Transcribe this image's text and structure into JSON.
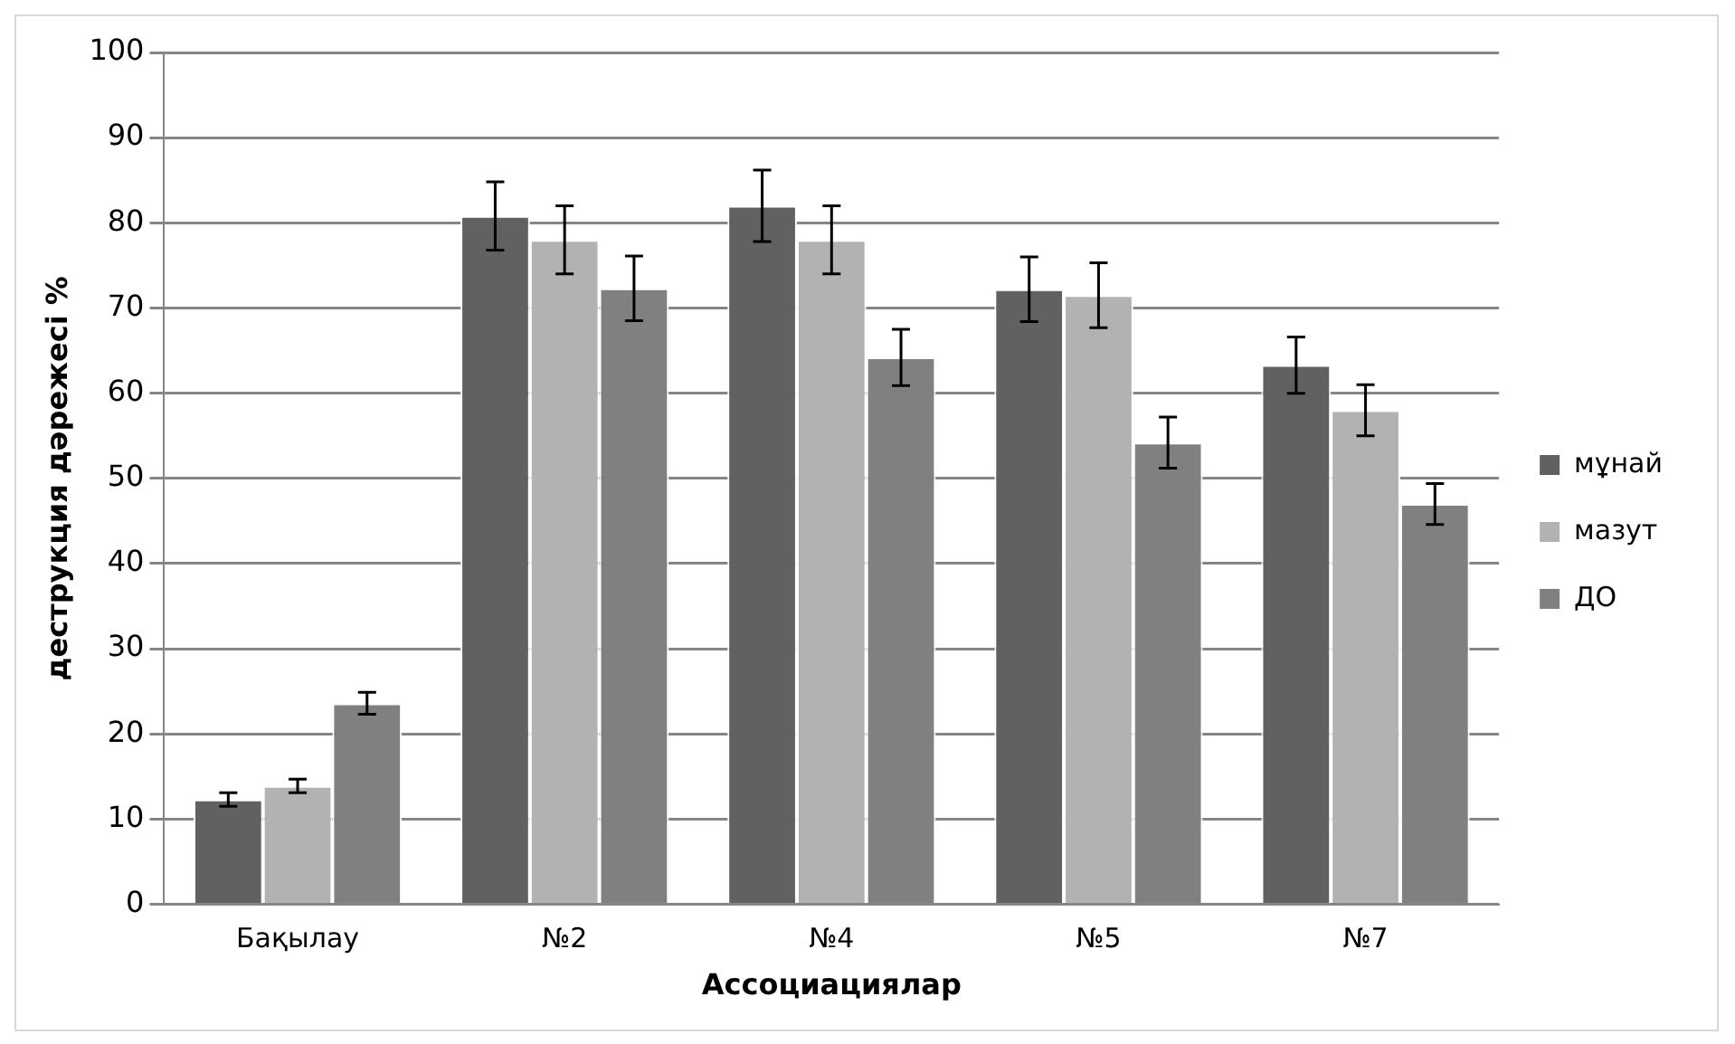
{
  "chart_data": {
    "type": "bar",
    "xlabel": "Ассоциациялар",
    "ylabel": "деструкция дәрежесі %",
    "categories": [
      "Бақылау",
      "№2",
      "№4",
      "№5",
      "№7"
    ],
    "series": [
      {
        "name": "мұнай",
        "color": "#616161",
        "values": [
          12.3,
          80.8,
          82,
          72.2,
          63.3
        ],
        "errors": [
          0.8,
          4,
          4.2,
          3.8,
          3.3
        ]
      },
      {
        "name": "мазут",
        "color": "#b2b2b2",
        "values": [
          13.9,
          78,
          78,
          71.5,
          58
        ],
        "errors": [
          0.8,
          4,
          4,
          3.8,
          3
        ]
      },
      {
        "name": "ДО",
        "color": "#808080",
        "values": [
          23.6,
          72.3,
          64.2,
          54.2,
          47
        ],
        "errors": [
          1.3,
          3.8,
          3.3,
          3,
          2.4
        ]
      }
    ],
    "ylim": [
      0,
      100
    ],
    "yticks": [
      0,
      10,
      20,
      30,
      40,
      50,
      60,
      70,
      80,
      90,
      100
    ],
    "grid": "y",
    "legend": "right"
  }
}
